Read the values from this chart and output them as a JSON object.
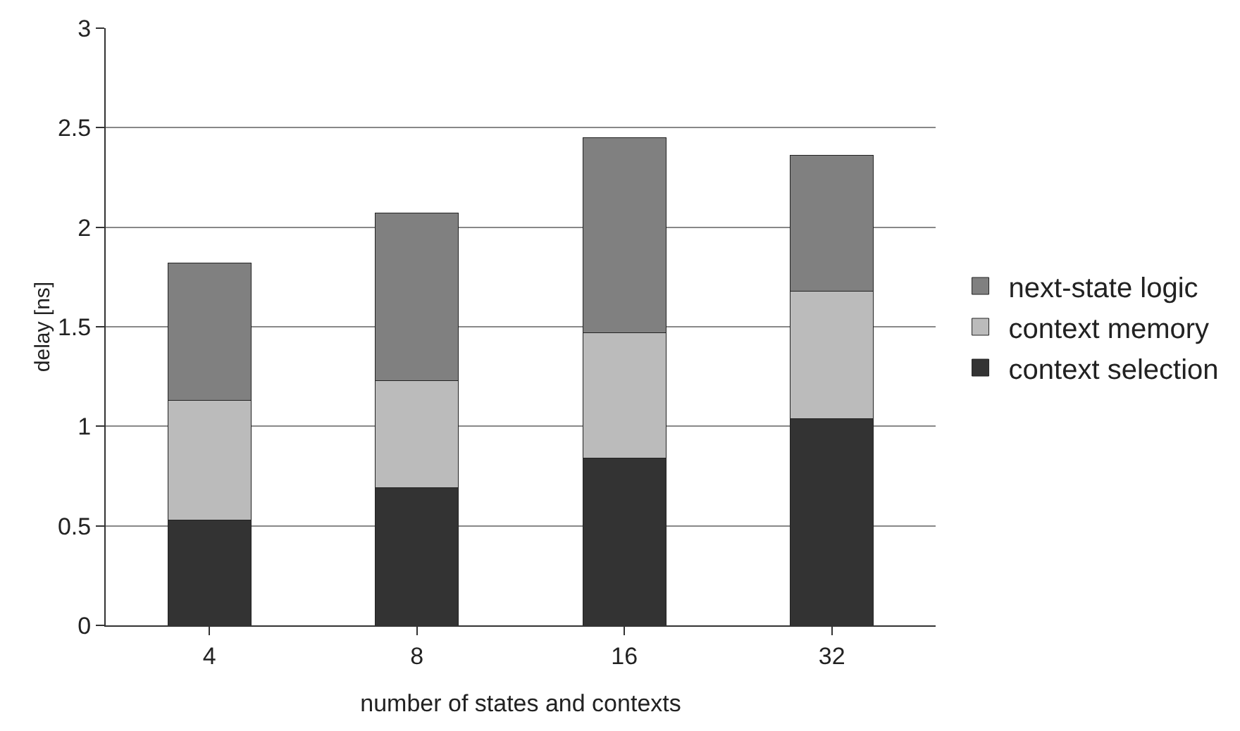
{
  "chart_data": {
    "type": "bar",
    "stacked": true,
    "xlabel": "number of states and contexts",
    "ylabel": "delay [ns]",
    "categories": [
      "4",
      "8",
      "16",
      "32"
    ],
    "series": [
      {
        "name": "context selection",
        "color": "#333333",
        "values": [
          0.53,
          0.69,
          0.84,
          1.04
        ]
      },
      {
        "name": "context memory",
        "color": "#bbbbbb",
        "values": [
          0.6,
          0.54,
          0.63,
          0.64
        ]
      },
      {
        "name": "next-state logic",
        "color": "#808080",
        "values": [
          0.69,
          0.84,
          0.98,
          0.68
        ]
      }
    ],
    "ylim": [
      0,
      3
    ],
    "yticks": [
      0,
      0.5,
      1,
      1.5,
      2,
      2.5,
      3
    ],
    "grid": "y",
    "legend": "right"
  }
}
